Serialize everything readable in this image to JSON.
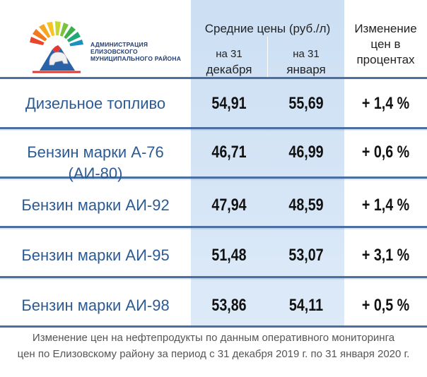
{
  "header": {
    "logo_text_line1": "АДМИНИСТРАЦИЯ",
    "logo_text_line2": "ЕЛИЗОВСКОГО",
    "logo_text_line3": "МУНИЦИПАЛЬНОГО РАЙОНА",
    "avg_prices_label": "Средние цены (руб./л)",
    "date1_line1": "на 31",
    "date1_line2": "декабря",
    "date2_line1": "на 31",
    "date2_line2": "января",
    "change_line1": "Изменение",
    "change_line2": "цен в",
    "change_line3": "процентах"
  },
  "rows": [
    {
      "fuel": "Дизельное топливо",
      "dec": "54,91",
      "jan": "55,69",
      "change": "+ 1,4 %"
    },
    {
      "fuel": "Бензин марки А-76 (АИ-80)",
      "dec": "46,71",
      "jan": "46,99",
      "change": "+ 0,6 %"
    },
    {
      "fuel": "Бензин марки АИ-92",
      "dec": "47,94",
      "jan": "48,59",
      "change": "+ 1,4 %"
    },
    {
      "fuel": "Бензин марки АИ-95",
      "dec": "51,48",
      "jan": "53,07",
      "change": "+ 3,1 %"
    },
    {
      "fuel": "Бензин марки АИ-98",
      "dec": "53,86",
      "jan": "54,11",
      "change": "+ 0,5 %"
    }
  ],
  "footer": {
    "line1": "Изменение цен на нефтепродукты  по данным оперативного мониторинга",
    "line2": "цен по Елизовскому району за период с 31 декабря 2019 г. по 31 января 2020 г."
  },
  "colors": {
    "accent": "#2c5b94",
    "divider": "#4a6fa0",
    "band": "#d5e5f6"
  },
  "icons": {
    "logo": "sun-bear-volcano-emblem"
  }
}
